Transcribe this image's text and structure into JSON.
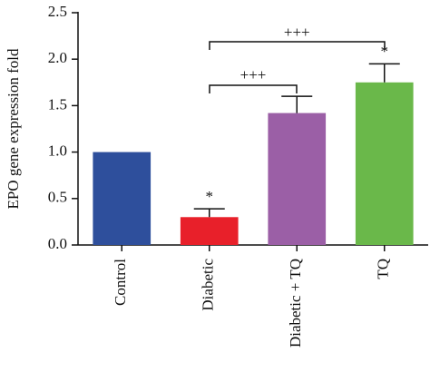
{
  "chart_data": {
    "type": "bar",
    "y_label": "EPO gene expression fold",
    "categories": [
      "Control",
      "Diabetic",
      "Diabetic + TQ",
      "TQ"
    ],
    "values": [
      1.0,
      0.3,
      1.42,
      1.75
    ],
    "errors": [
      0,
      0.09,
      0.18,
      0.2
    ],
    "colors": [
      "#2e4f9c",
      "#e8202a",
      "#9b5fa6",
      "#6ab84a"
    ],
    "ylim": [
      0,
      2.5
    ],
    "yticks": [
      {
        "value": 0,
        "label": "0.0"
      },
      0.5,
      {
        "value": 1,
        "label": "1.0"
      },
      1.5,
      {
        "value": 2,
        "label": "2.0"
      },
      2.5
    ],
    "annotations": [
      "*",
      "*",
      "+++",
      "+++"
    ]
  }
}
